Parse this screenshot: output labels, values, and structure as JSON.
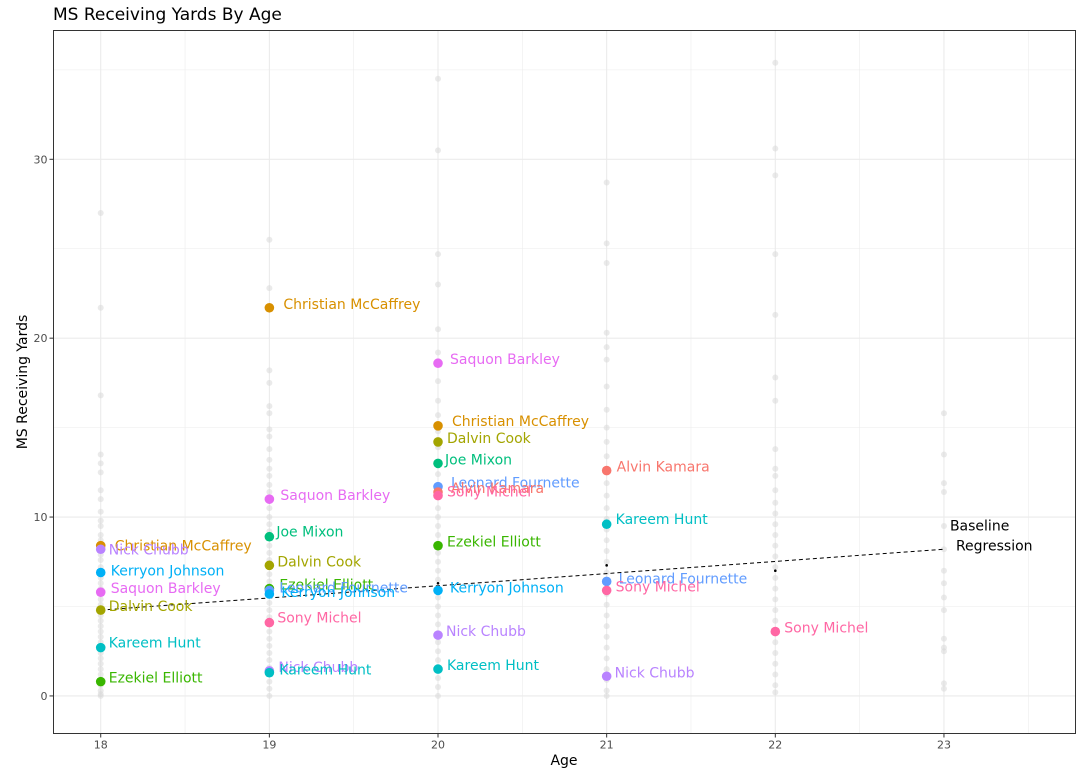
{
  "chart_data": {
    "type": "scatter",
    "title": "MS Receiving Yards By Age",
    "xlabel": "Age",
    "ylabel": "MS Receiving Yards",
    "xlim": [
      17.72,
      23.78
    ],
    "ylim": [
      -2.1,
      37.2
    ],
    "x_ticks": [
      18,
      19,
      20,
      21,
      22,
      23
    ],
    "y_ticks": [
      0,
      10,
      20,
      30
    ],
    "grid": true,
    "legend": "none",
    "players": [
      {
        "name": "Alvin Kamara",
        "color": "#F8766D"
      },
      {
        "name": "Christian McCaffrey",
        "color": "#D89000"
      },
      {
        "name": "Dalvin Cook",
        "color": "#A3A500"
      },
      {
        "name": "Ezekiel Elliott",
        "color": "#39B600"
      },
      {
        "name": "Joe Mixon",
        "color": "#00BF7D"
      },
      {
        "name": "Kareem Hunt",
        "color": "#00BFC4"
      },
      {
        "name": "Kerryon Johnson",
        "color": "#00B0F6"
      },
      {
        "name": "Leonard Fournette",
        "color": "#619CFF"
      },
      {
        "name": "Nick Chubb",
        "color": "#B983FF"
      },
      {
        "name": "Saquon Barkley",
        "color": "#E76BF3"
      },
      {
        "name": "Sony Michel",
        "color": "#FF67A4"
      }
    ],
    "points": [
      {
        "player": "Christian McCaffrey",
        "x": 18,
        "y": 8.4,
        "label_dx": 14,
        "label_dy": 0
      },
      {
        "player": "Nick Chubb",
        "x": 18,
        "y": 8.2,
        "label_dx": 8,
        "label_dy": 0
      },
      {
        "player": "Kerryon Johnson",
        "x": 18,
        "y": 6.9,
        "label_dx": 10,
        "label_dy": -2
      },
      {
        "player": "Saquon Barkley",
        "x": 18,
        "y": 5.8,
        "label_dx": 10,
        "label_dy": -4
      },
      {
        "player": "Dalvin Cook",
        "x": 18,
        "y": 4.8,
        "label_dx": 8,
        "label_dy": -4
      },
      {
        "player": "Kareem Hunt",
        "x": 18,
        "y": 2.7,
        "label_dx": 8,
        "label_dy": -5
      },
      {
        "player": "Ezekiel Elliott",
        "x": 18,
        "y": 0.8,
        "label_dx": 8,
        "label_dy": -4
      },
      {
        "player": "Christian McCaffrey",
        "x": 19,
        "y": 21.7,
        "label_dx": 14,
        "label_dy": -4
      },
      {
        "player": "Saquon Barkley",
        "x": 19,
        "y": 11.0,
        "label_dx": 11,
        "label_dy": -4
      },
      {
        "player": "Joe Mixon",
        "x": 19,
        "y": 8.9,
        "label_dx": 7,
        "label_dy": -5
      },
      {
        "player": "Dalvin Cook",
        "x": 19,
        "y": 7.3,
        "label_dx": 8,
        "label_dy": -4
      },
      {
        "player": "Ezekiel Elliott",
        "x": 19,
        "y": 6.0,
        "label_dx": 10,
        "label_dy": -4
      },
      {
        "player": "Leonard Fournette",
        "x": 19,
        "y": 5.9,
        "label_dx": 10,
        "label_dy": -3
      },
      {
        "player": "Kerryon Johnson",
        "x": 19,
        "y": 5.7,
        "label_dx": 12,
        "label_dy": -2
      },
      {
        "player": "Sony Michel",
        "x": 19,
        "y": 4.1,
        "label_dx": 8,
        "label_dy": -5
      },
      {
        "player": "Nick Chubb",
        "x": 19,
        "y": 1.4,
        "label_dx": 9,
        "label_dy": -4
      },
      {
        "player": "Kareem Hunt",
        "x": 19,
        "y": 1.3,
        "label_dx": 10,
        "label_dy": -3
      },
      {
        "player": "Saquon Barkley",
        "x": 20,
        "y": 18.6,
        "label_dx": 12,
        "label_dy": -4
      },
      {
        "player": "Christian McCaffrey",
        "x": 20,
        "y": 15.1,
        "label_dx": 14,
        "label_dy": -5
      },
      {
        "player": "Dalvin Cook",
        "x": 20,
        "y": 14.2,
        "label_dx": 9,
        "label_dy": -4
      },
      {
        "player": "Joe Mixon",
        "x": 20,
        "y": 13.0,
        "label_dx": 7,
        "label_dy": -4
      },
      {
        "player": "Leonard Fournette",
        "x": 20,
        "y": 11.7,
        "label_dx": 13,
        "label_dy": -4
      },
      {
        "player": "Alvin Kamara",
        "x": 20,
        "y": 11.4,
        "label_dx": 13,
        "label_dy": -4
      },
      {
        "player": "Sony Michel",
        "x": 20,
        "y": 11.2,
        "label_dx": 9,
        "label_dy": -4
      },
      {
        "player": "Ezekiel Elliott",
        "x": 20,
        "y": 8.4,
        "label_dx": 9,
        "label_dy": -4
      },
      {
        "player": "Kerryon Johnson",
        "x": 20,
        "y": 5.9,
        "label_dx": 12,
        "label_dy": -3
      },
      {
        "player": "Nick Chubb",
        "x": 20,
        "y": 3.4,
        "label_dx": 8,
        "label_dy": -4
      },
      {
        "player": "Kareem Hunt",
        "x": 20,
        "y": 1.5,
        "label_dx": 9,
        "label_dy": -4
      },
      {
        "player": "Alvin Kamara",
        "x": 21,
        "y": 12.6,
        "label_dx": 10,
        "label_dy": -4
      },
      {
        "player": "Kareem Hunt",
        "x": 21,
        "y": 9.6,
        "label_dx": 9,
        "label_dy": -5
      },
      {
        "player": "Leonard Fournette",
        "x": 21,
        "y": 6.4,
        "label_dx": 12,
        "label_dy": -3
      },
      {
        "player": "Sony Michel",
        "x": 21,
        "y": 5.9,
        "label_dx": 9,
        "label_dy": -4
      },
      {
        "player": "Nick Chubb",
        "x": 21,
        "y": 1.1,
        "label_dx": 8,
        "label_dy": -4
      },
      {
        "player": "Sony Michel",
        "x": 22,
        "y": 3.6,
        "label_dx": 9,
        "label_dy": -4
      }
    ],
    "background_points": [
      {
        "x": 18,
        "y": [
          27.0,
          21.7,
          16.8,
          13.5,
          13.0,
          12.5,
          11.5,
          11.0,
          10.3,
          9.8,
          9.5,
          9.0,
          8.7,
          8.3,
          7.9,
          7.6,
          7.2,
          6.9,
          6.6,
          6.3,
          6.0,
          5.7,
          5.4,
          5.1,
          4.8,
          4.5,
          4.2,
          3.9,
          3.6,
          3.3,
          3.0,
          2.7,
          2.4,
          2.1,
          1.8,
          1.5,
          1.2,
          0.9,
          0.6,
          0.3,
          0.1,
          0.0
        ]
      },
      {
        "x": 19,
        "y": [
          25.5,
          22.8,
          18.2,
          17.5,
          16.2,
          15.8,
          14.9,
          14.5,
          13.8,
          13.2,
          12.7,
          12.3,
          11.8,
          11.4,
          10.9,
          10.5,
          10.0,
          9.6,
          9.2,
          8.8,
          8.4,
          8.0,
          7.6,
          7.2,
          6.8,
          6.4,
          6.0,
          5.6,
          5.2,
          4.8,
          4.4,
          4.0,
          3.6,
          3.2,
          2.8,
          2.4,
          2.0,
          1.6,
          1.2,
          0.8,
          0.4,
          0.0
        ]
      },
      {
        "x": 20,
        "y": [
          34.5,
          30.5,
          24.7,
          23.0,
          20.5,
          19.2,
          17.6,
          16.5,
          15.7,
          14.8,
          13.9,
          13.1,
          12.4,
          11.8,
          11.1,
          10.5,
          10.0,
          9.5,
          9.0,
          8.5,
          8.0,
          7.5,
          7.0,
          6.5,
          6.0,
          5.5,
          5.0,
          4.5,
          4.0,
          3.5,
          3.0,
          2.5,
          2.0,
          1.5,
          1.0,
          0.5,
          0.0
        ]
      },
      {
        "x": 21,
        "y": [
          28.7,
          25.3,
          24.2,
          20.3,
          19.5,
          18.8,
          17.3,
          16.0,
          15.0,
          14.2,
          13.4,
          12.6,
          11.9,
          11.2,
          10.5,
          9.9,
          9.3,
          8.7,
          8.1,
          7.5,
          6.9,
          6.3,
          5.7,
          5.1,
          4.5,
          3.9,
          3.3,
          2.7,
          2.1,
          1.5,
          0.9,
          0.3,
          0.0
        ]
      },
      {
        "x": 22,
        "y": [
          35.4,
          30.6,
          29.1,
          24.7,
          21.3,
          17.8,
          16.5,
          13.8,
          12.7,
          12.3,
          11.5,
          10.8,
          10.2,
          9.6,
          9.0,
          8.4,
          7.8,
          7.2,
          6.6,
          6.0,
          5.4,
          4.8,
          4.2,
          3.6,
          3.0,
          2.4,
          1.8,
          1.2,
          0.6,
          0.2
        ]
      },
      {
        "x": 23,
        "y": [
          15.8,
          13.5,
          11.9,
          11.4,
          9.5,
          8.2,
          7.0,
          6.3,
          5.5,
          4.8,
          3.2,
          2.7,
          2.5,
          0.7,
          0.4
        ]
      }
    ],
    "baseline_regression": {
      "label_line1": "Baseline",
      "label_line2": "Regression",
      "start": {
        "x": 18,
        "y": 4.8
      },
      "end": {
        "x": 23,
        "y": 8.2
      },
      "age_means": [
        {
          "x": 18,
          "y": 4.8
        },
        {
          "x": 19,
          "y": 5.8
        },
        {
          "x": 20,
          "y": 6.3
        },
        {
          "x": 21,
          "y": 7.3
        },
        {
          "x": 22,
          "y": 7.0
        }
      ]
    },
    "colors": {
      "background_point": "#d9d9d9",
      "grid": "#ebebeb",
      "panel_border": "#333333",
      "regression_line": "#000000"
    }
  }
}
